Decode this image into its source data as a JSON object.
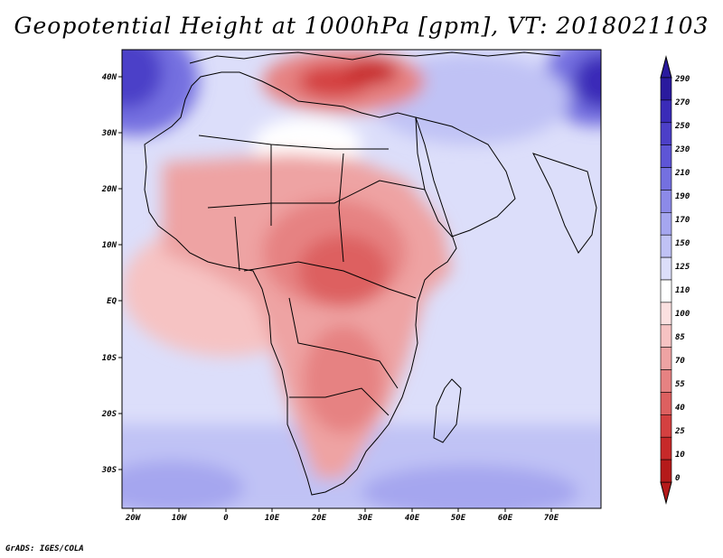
{
  "title": "Geopotential Height at 1000hPa [gpm], VT: 2018021103",
  "credit": "GrADS: IGES/COLA",
  "map": {
    "lon_range": [
      -23,
      80
    ],
    "lat_range": [
      -37,
      45
    ],
    "lon_ticks": [
      "20W",
      "10W",
      "0",
      "10E",
      "20E",
      "30E",
      "40E",
      "50E",
      "60E",
      "70E"
    ],
    "lat_ticks": [
      "40N",
      "30N",
      "20N",
      "10N",
      "EQ",
      "10S",
      "20S",
      "30S"
    ]
  },
  "colorbar": {
    "levels": [
      "290",
      "270",
      "250",
      "230",
      "210",
      "190",
      "170",
      "150",
      "125",
      "110",
      "100",
      "85",
      "70",
      "55",
      "40",
      "25",
      "10",
      "0"
    ],
    "colors": [
      "#2a1a9e",
      "#3a2bb8",
      "#4c3fc8",
      "#5e55d6",
      "#7470e0",
      "#8c8ae8",
      "#a5a6ef",
      "#c0c2f5",
      "#dcdefa",
      "#ffffff",
      "#fbe0e0",
      "#f6c3c3",
      "#eea3a3",
      "#e68282",
      "#dd6060",
      "#d44040",
      "#c72929",
      "#b51a1a"
    ]
  }
}
